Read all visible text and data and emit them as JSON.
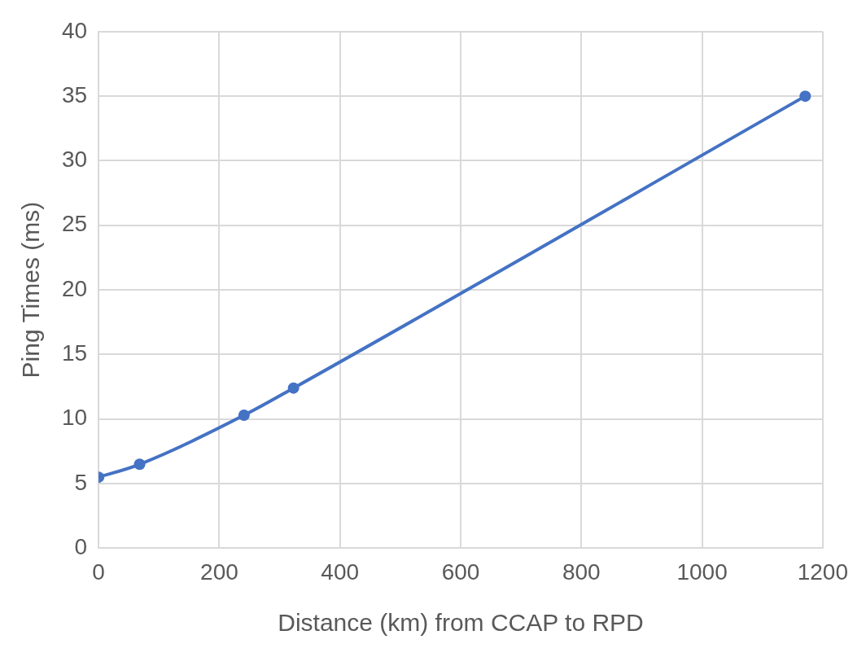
{
  "chart_data": {
    "type": "line",
    "xlabel": "Distance (km) from CCAP to RPD",
    "ylabel": "Ping Times (ms)",
    "series": [
      {
        "color": "#4472c4",
        "x": [
          0,
          68,
          241,
          323,
          1171
        ],
        "values": [
          5.5,
          6.5,
          10.3,
          12.4,
          35
        ]
      }
    ],
    "xlim": [
      0,
      1200
    ],
    "xticks": [
      0,
      200,
      400,
      600,
      800,
      1000,
      1200
    ],
    "ylim": [
      0,
      40
    ],
    "yticks": [
      0,
      5,
      10,
      15,
      20,
      25,
      30,
      35,
      40
    ],
    "grid": true,
    "marker": "circle",
    "line_style": "solid"
  }
}
